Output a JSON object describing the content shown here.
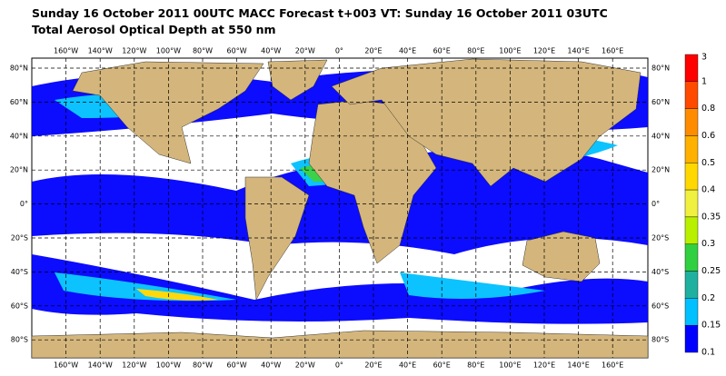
{
  "header": {
    "line1": "Sunday 16 October 2011 00UTC MACC Forecast t+003 VT: Sunday 16 October 2011 03UTC",
    "line2": "Total Aerosol Optical Depth at 550 nm"
  },
  "map": {
    "lon_labels": [
      "160°W",
      "140°W",
      "120°W",
      "100°W",
      "80°W",
      "60°W",
      "40°W",
      "20°W",
      "0°",
      "20°E",
      "40°E",
      "60°E",
      "80°E",
      "100°E",
      "120°E",
      "140°E",
      "160°E"
    ],
    "lat_labels": [
      "80°N",
      "60°N",
      "40°N",
      "20°N",
      "0°",
      "20°S",
      "40°S",
      "60°S",
      "80°S"
    ]
  },
  "legend": {
    "levels": [
      "3",
      "1",
      "0.8",
      "0.6",
      "0.5",
      "0.4",
      "0.35",
      "0.3",
      "0.25",
      "0.2",
      "0.15",
      "0.1"
    ],
    "colors": [
      "#ff0000",
      "#ff4a00",
      "#ff8c00",
      "#ffb000",
      "#ffd800",
      "#f0f040",
      "#b8f000",
      "#30d040",
      "#20b0a0",
      "#00c0ff",
      "#0000ff"
    ]
  }
}
